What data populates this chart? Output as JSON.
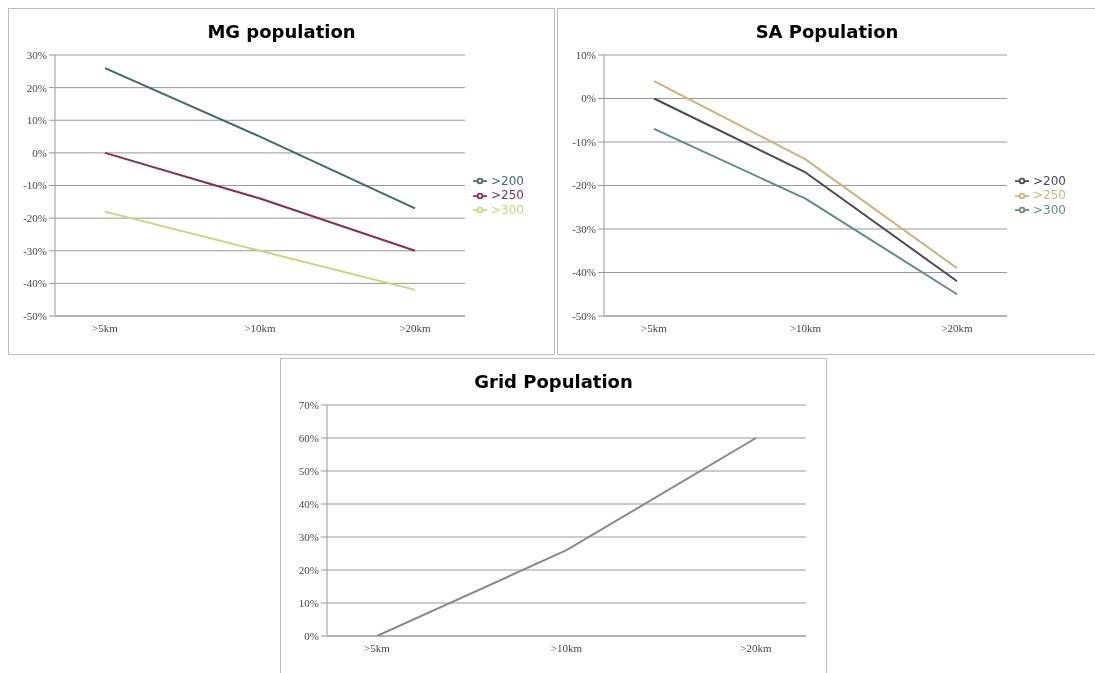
{
  "chart_data": [
    {
      "type": "line",
      "title": "MG population",
      "categories": [
        ">5km",
        ">10km",
        ">20km"
      ],
      "series": [
        {
          "name": ">200",
          "color": "#3f6b6b",
          "values": [
            26,
            5,
            -17
          ]
        },
        {
          "name": ">250",
          "color": "#8c2d4c",
          "values": [
            0,
            -14,
            -30
          ]
        },
        {
          "name": ">300",
          "color": "#c9d67c",
          "values": [
            -18,
            -30,
            -42
          ]
        }
      ],
      "ylim": [
        -50,
        30
      ],
      "yticks": [
        {
          "value": -50,
          "label": "-50%"
        },
        {
          "value": -40,
          "label": "-40%"
        },
        {
          "value": -30,
          "label": "-30%"
        },
        {
          "value": -20,
          "label": "-20%"
        },
        {
          "value": -10,
          "label": "-10%"
        },
        {
          "value": 0,
          "label": "0%"
        },
        {
          "value": 10,
          "label": "10%"
        },
        {
          "value": 20,
          "label": "20%"
        },
        {
          "value": 30,
          "label": "30%"
        }
      ],
      "grid": "y",
      "legend": "right"
    },
    {
      "type": "line",
      "title": "SA Population",
      "categories": [
        ">5km",
        ">10km",
        ">20km"
      ],
      "series": [
        {
          "name": ">200",
          "color": "#4a4a5c",
          "values": [
            0,
            -17,
            -42
          ]
        },
        {
          "name": ">250",
          "color": "#d0b27c",
          "values": [
            4,
            -14,
            -39
          ]
        },
        {
          "name": ">300",
          "color": "#5f8c8c",
          "values": [
            -7,
            -23,
            -45
          ]
        }
      ],
      "ylim": [
        -50,
        10
      ],
      "yticks": [
        {
          "value": -50,
          "label": "-50%"
        },
        {
          "value": -40,
          "label": "-40%"
        },
        {
          "value": -30,
          "label": "-30%"
        },
        {
          "value": -20,
          "label": "-20%"
        },
        {
          "value": -10,
          "label": "-10%"
        },
        {
          "value": 0,
          "label": "0%"
        },
        {
          "value": 10,
          "label": "10%"
        }
      ],
      "grid": "y",
      "legend": "right"
    },
    {
      "type": "line",
      "title": "Grid Population",
      "categories": [
        ">5km",
        ">10km",
        ">20km"
      ],
      "series": [
        {
          "color": "#8a8a8a",
          "values": [
            0,
            26,
            60
          ]
        }
      ],
      "ylim": [
        0,
        70
      ],
      "yticks": [
        {
          "value": 0,
          "label": "0%"
        },
        {
          "value": 10,
          "label": "10%"
        },
        {
          "value": 20,
          "label": "20%"
        },
        {
          "value": 30,
          "label": "30%"
        },
        {
          "value": 40,
          "label": "40%"
        },
        {
          "value": 50,
          "label": "50%"
        },
        {
          "value": 60,
          "label": "60%"
        },
        {
          "value": 70,
          "label": "70%"
        }
      ],
      "grid": "y"
    }
  ]
}
